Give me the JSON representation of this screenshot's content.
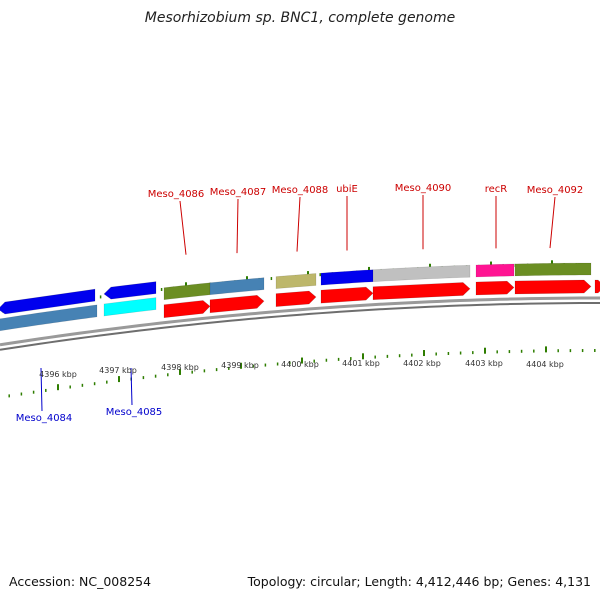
{
  "title": "Mesorhizobium sp. BNC1, complete genome",
  "footer": {
    "accession": "Accession: NC_008254",
    "summary": "Topology: circular; Length: 4,412,446 bp; Genes: 4,131"
  },
  "scale_labels": [
    "4396 kbp",
    "4397 kbp",
    "4398 kbp",
    "4399 kbp",
    "4400 kbp",
    "4401 kbp",
    "4402 kbp",
    "4403 kbp",
    "4404 kbp"
  ],
  "genes_forward": [
    {
      "label": "Meso_4086",
      "color": "#6b8e23"
    },
    {
      "label": "Meso_4087",
      "color": "#4682b4"
    },
    {
      "label": "Meso_4088",
      "color": "#bdb76b"
    },
    {
      "label": "ubiE",
      "color": "#0000ee"
    },
    {
      "label": "Meso_4090",
      "color": "#c0c0c0"
    },
    {
      "label": "recR",
      "color": "#ff1493"
    },
    {
      "label": "Meso_4092",
      "color": "#6b8e23"
    }
  ],
  "genes_reverse": [
    {
      "label": "Meso_4084",
      "color": "#4682b4"
    },
    {
      "label": "Meso_4085",
      "color": "#00ffff"
    }
  ],
  "colors": {
    "forward_label": "#cc0000",
    "reverse_label": "#0000cc",
    "cds": "#ff0000",
    "reverse_cds": "#0000ee",
    "tick": "#2e7d00",
    "backbone": "#888888"
  }
}
